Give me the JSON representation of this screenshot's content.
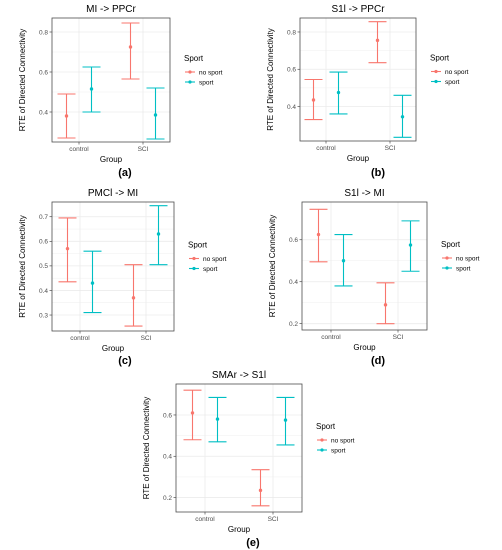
{
  "colors": {
    "no_sport": "#F8766D",
    "sport": "#00BFC4",
    "panel_bg": "#ffffff",
    "grid": "#ebebeb",
    "border": "#4d4d4d"
  },
  "chart_data": [
    {
      "type": "errorbar",
      "label": "(a)",
      "title": "MI -> PPCr",
      "xlabel": "Group",
      "ylabel": "RTE of Directed Connectivity",
      "categories": [
        "control",
        "SCI"
      ],
      "ylim": [
        0.25,
        0.87
      ],
      "yticks": [
        0.4,
        0.6,
        0.8
      ],
      "legend": {
        "title": "Sport",
        "position": "right",
        "entries": [
          "no sport",
          "sport"
        ]
      },
      "series": [
        {
          "name": "no sport",
          "mean": [
            0.38,
            0.725
          ],
          "lower": [
            0.27,
            0.565
          ],
          "upper": [
            0.49,
            0.845
          ]
        },
        {
          "name": "sport",
          "mean": [
            0.515,
            0.385
          ],
          "lower": [
            0.4,
            0.265
          ],
          "upper": [
            0.625,
            0.52
          ]
        }
      ]
    },
    {
      "type": "errorbar",
      "label": "(b)",
      "title": "S1l -> PPCr",
      "xlabel": "Group",
      "ylabel": "RTE of Directed Connectivity",
      "categories": [
        "control",
        "SCI"
      ],
      "ylim": [
        0.215,
        0.875
      ],
      "yticks": [
        0.4,
        0.6,
        0.8
      ],
      "legend": {
        "title": "Sport",
        "position": "right",
        "entries": [
          "no sport",
          "sport"
        ]
      },
      "series": [
        {
          "name": "no sport",
          "mean": [
            0.435,
            0.755
          ],
          "lower": [
            0.33,
            0.635
          ],
          "upper": [
            0.545,
            0.855
          ]
        },
        {
          "name": "sport",
          "mean": [
            0.475,
            0.345
          ],
          "lower": [
            0.36,
            0.235
          ],
          "upper": [
            0.585,
            0.46
          ]
        }
      ]
    },
    {
      "type": "errorbar",
      "label": "(c)",
      "title": "PMCl -> MI",
      "xlabel": "Group",
      "ylabel": "RTE of Directed Connectivity",
      "categories": [
        "control",
        "SCI"
      ],
      "ylim": [
        0.235,
        0.76
      ],
      "yticks": [
        0.3,
        0.4,
        0.5,
        0.6,
        0.7
      ],
      "legend": {
        "title": "Sport",
        "position": "right",
        "entries": [
          "no sport",
          "sport"
        ]
      },
      "series": [
        {
          "name": "no sport",
          "mean": [
            0.57,
            0.37
          ],
          "lower": [
            0.435,
            0.255
          ],
          "upper": [
            0.695,
            0.505
          ]
        },
        {
          "name": "sport",
          "mean": [
            0.43,
            0.63
          ],
          "lower": [
            0.31,
            0.505
          ],
          "upper": [
            0.56,
            0.745
          ]
        }
      ]
    },
    {
      "type": "errorbar",
      "label": "(d)",
      "title": "S1l -> MI",
      "xlabel": "Group",
      "ylabel": "RTE of Directed Connectivity",
      "categories": [
        "control",
        "SCI"
      ],
      "ylim": [
        0.17,
        0.78
      ],
      "yticks": [
        0.2,
        0.4,
        0.6
      ],
      "legend": {
        "title": "Sport",
        "position": "right",
        "entries": [
          "no sport",
          "sport"
        ]
      },
      "series": [
        {
          "name": "no sport",
          "mean": [
            0.625,
            0.29
          ],
          "lower": [
            0.495,
            0.2
          ],
          "upper": [
            0.745,
            0.395
          ]
        },
        {
          "name": "sport",
          "mean": [
            0.5,
            0.575
          ],
          "lower": [
            0.38,
            0.45
          ],
          "upper": [
            0.625,
            0.69
          ]
        }
      ]
    },
    {
      "type": "errorbar",
      "label": "(e)",
      "title": "SMAr -> S1l",
      "xlabel": "Group",
      "ylabel": "RTE of Directed Connectivity",
      "categories": [
        "control",
        "SCI"
      ],
      "ylim": [
        0.13,
        0.75
      ],
      "yticks": [
        0.2,
        0.4,
        0.6
      ],
      "legend": {
        "title": "Sport",
        "position": "right",
        "entries": [
          "no sport",
          "sport"
        ]
      },
      "series": [
        {
          "name": "no sport",
          "mean": [
            0.61,
            0.235
          ],
          "lower": [
            0.48,
            0.16
          ],
          "upper": [
            0.72,
            0.335
          ]
        },
        {
          "name": "sport",
          "mean": [
            0.58,
            0.575
          ],
          "lower": [
            0.47,
            0.455
          ],
          "upper": [
            0.685,
            0.685
          ]
        }
      ]
    }
  ]
}
